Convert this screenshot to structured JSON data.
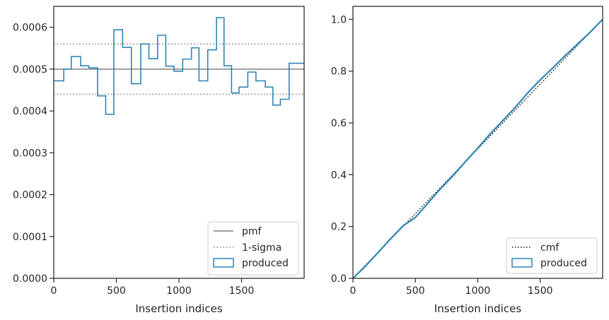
{
  "colors": {
    "produced": "#2f86b4",
    "reference": "#808080",
    "cmf": "#111111",
    "frame": "#262626",
    "legend_border": "#cccccc"
  },
  "chart_data": [
    {
      "type": "line",
      "chart_kind": "step histogram",
      "title": "",
      "xlabel": "Insertion indices",
      "ylabel": "",
      "xlim": [
        0,
        2000
      ],
      "ylim": [
        0,
        0.00065
      ],
      "xticks": [
        0,
        500,
        1000,
        1500
      ],
      "xtick_labels": [
        "0",
        "500",
        "1000",
        "1500"
      ],
      "yticks": [
        0,
        0.0001,
        0.0002,
        0.0003,
        0.0004,
        0.0005,
        0.0006
      ],
      "ytick_labels": [
        "0.0000",
        "0.0001",
        "0.0002",
        "0.0003",
        "0.0004",
        "0.0005",
        "0.0006"
      ],
      "grid": false,
      "legend_position": "lower right",
      "bin_edges": [
        0,
        80,
        140,
        215,
        280,
        350,
        415,
        480,
        550,
        620,
        695,
        760,
        830,
        895,
        960,
        1030,
        1100,
        1160,
        1230,
        1300,
        1360,
        1420,
        1480,
        1550,
        1615,
        1690,
        1750,
        1810,
        1880,
        1945,
        2000
      ],
      "series": [
        {
          "name": "pmf",
          "style": "solid",
          "y": 0.0005
        },
        {
          "name": "1-sigma",
          "style": "dotted",
          "y": [
            0.00044,
            0.00056
          ]
        },
        {
          "name": "produced",
          "style": "step",
          "values": [
            0.000472,
            0.0005,
            0.00053,
            0.000508,
            0.000503,
            0.000436,
            0.000392,
            0.000594,
            0.000552,
            0.000465,
            0.00056,
            0.000525,
            0.000581,
            0.000507,
            0.000495,
            0.000524,
            0.000551,
            0.000472,
            0.000546,
            0.000623,
            0.000508,
            0.000443,
            0.000457,
            0.000493,
            0.000472,
            0.000457,
            0.000414,
            0.000428,
            0.000514,
            0.000514
          ]
        }
      ]
    },
    {
      "type": "line",
      "chart_kind": "cumulative",
      "title": "",
      "xlabel": "Insertion indices",
      "ylabel": "",
      "xlim": [
        0,
        2000
      ],
      "ylim": [
        0,
        1.05
      ],
      "xticks": [
        0,
        500,
        1000,
        1500
      ],
      "xtick_labels": [
        "0",
        "500",
        "1000",
        "1500"
      ],
      "yticks": [
        0,
        0.2,
        0.4,
        0.6,
        0.8,
        1.0
      ],
      "ytick_labels": [
        "0.0",
        "0.2",
        "0.4",
        "0.6",
        "0.8",
        "1.0"
      ],
      "grid": false,
      "legend_position": "lower right",
      "series": [
        {
          "name": "cmf",
          "style": "dotted",
          "x": [
            0,
            2000
          ],
          "y": [
            0,
            1.0
          ]
        },
        {
          "name": "produced",
          "style": "solid",
          "x": [
            0,
            100,
            200,
            300,
            400,
            500,
            600,
            700,
            800,
            900,
            1000,
            1100,
            1200,
            1300,
            1400,
            1500,
            1600,
            1700,
            1800,
            1900,
            2000
          ],
          "y": [
            0,
            0.047,
            0.099,
            0.152,
            0.202,
            0.235,
            0.29,
            0.345,
            0.395,
            0.45,
            0.503,
            0.558,
            0.609,
            0.66,
            0.716,
            0.766,
            0.812,
            0.86,
            0.905,
            0.95,
            1.0
          ]
        }
      ]
    }
  ]
}
